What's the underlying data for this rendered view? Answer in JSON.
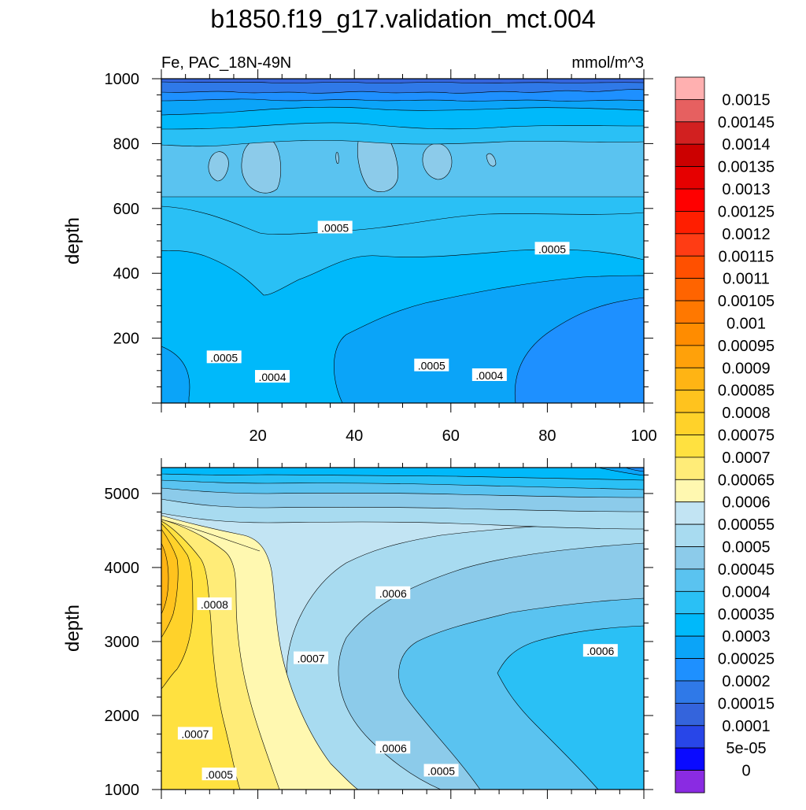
{
  "title": "b1850.f19_g17.validation_mct.004",
  "subtitle_left": "Fe, PAC_18N-49N",
  "subtitle_right": "mmol/m^3",
  "colors": {
    "palette": [
      "#8a2be2",
      "#5218f0",
      "#2020e6",
      "#0a0aff",
      "#2846e8",
      "#3464dc",
      "#2f79e8",
      "#1e90ff",
      "#0ba4f8",
      "#00b9fa",
      "#2ac0f5",
      "#5ac3f0",
      "#8ccbea",
      "#a8dbf0",
      "#c2e4f3",
      "#fff8b0",
      "#ffec78",
      "#ffe140",
      "#ffd22a",
      "#ffc31e",
      "#ffb414",
      "#ffa10a",
      "#ff8c00",
      "#ff7800",
      "#ff6400",
      "#ff5000",
      "#ff3c14",
      "#ff1e00",
      "#ff0000",
      "#e60000",
      "#cc0000",
      "#d22020",
      "#e66060",
      "#ffb0b0"
    ]
  },
  "colorbar_labels": [
    "0.0015",
    "0.00145",
    "0.0014",
    "0.00135",
    "0.0013",
    "0.00125",
    "0.0012",
    "0.00115",
    "0.0011",
    "0.00105",
    "0.001",
    "0.00095",
    "0.0009",
    "0.00085",
    "0.0008",
    "0.00075",
    "0.0007",
    "0.00065",
    "0.0006",
    "0.00055",
    "0.0005",
    "0.00045",
    "0.0004",
    "0.00035",
    "0.0003",
    "0.00025",
    "0.0002",
    "0.00015",
    "0.0001",
    "5e-05",
    "0"
  ],
  "chart_data": [
    {
      "type": "contour",
      "panel": "upper",
      "xlabel": "",
      "ylabel": "depth",
      "xlim": [
        0,
        100
      ],
      "ylim": [
        1000,
        0
      ],
      "xticks": [
        20,
        40,
        60,
        80,
        100
      ],
      "yticks": [
        200,
        400,
        600,
        800,
        1000
      ],
      "contour_labels": [
        {
          "text": ".0004",
          "x": 23,
          "y": 80
        },
        {
          "text": ".0005",
          "x": 13,
          "y": 140
        },
        {
          "text": ".0005",
          "x": 56,
          "y": 115
        },
        {
          "text": ".0004",
          "x": 68,
          "y": 85
        },
        {
          "text": ".0005",
          "x": 36,
          "y": 540
        },
        {
          "text": ".0005",
          "x": 81,
          "y": 475
        }
      ]
    },
    {
      "type": "contour",
      "panel": "lower",
      "xlabel": "",
      "ylabel": "depth",
      "xlim": [
        0,
        100
      ],
      "ylim": [
        5350,
        1000
      ],
      "yticks": [
        1000,
        2000,
        3000,
        4000,
        5000
      ],
      "contour_labels": [
        {
          "text": ".0005",
          "x": 12,
          "y": 1200
        },
        {
          "text": ".0005",
          "x": 58,
          "y": 1250
        },
        {
          "text": ".0006",
          "x": 48,
          "y": 1560
        },
        {
          "text": ".0007",
          "x": 7,
          "y": 1750
        },
        {
          "text": ".0007",
          "x": 31,
          "y": 2770
        },
        {
          "text": ".0006",
          "x": 91,
          "y": 2870
        },
        {
          "text": ".0008",
          "x": 11,
          "y": 3500
        },
        {
          "text": ".0006",
          "x": 48,
          "y": 3650
        }
      ]
    }
  ]
}
